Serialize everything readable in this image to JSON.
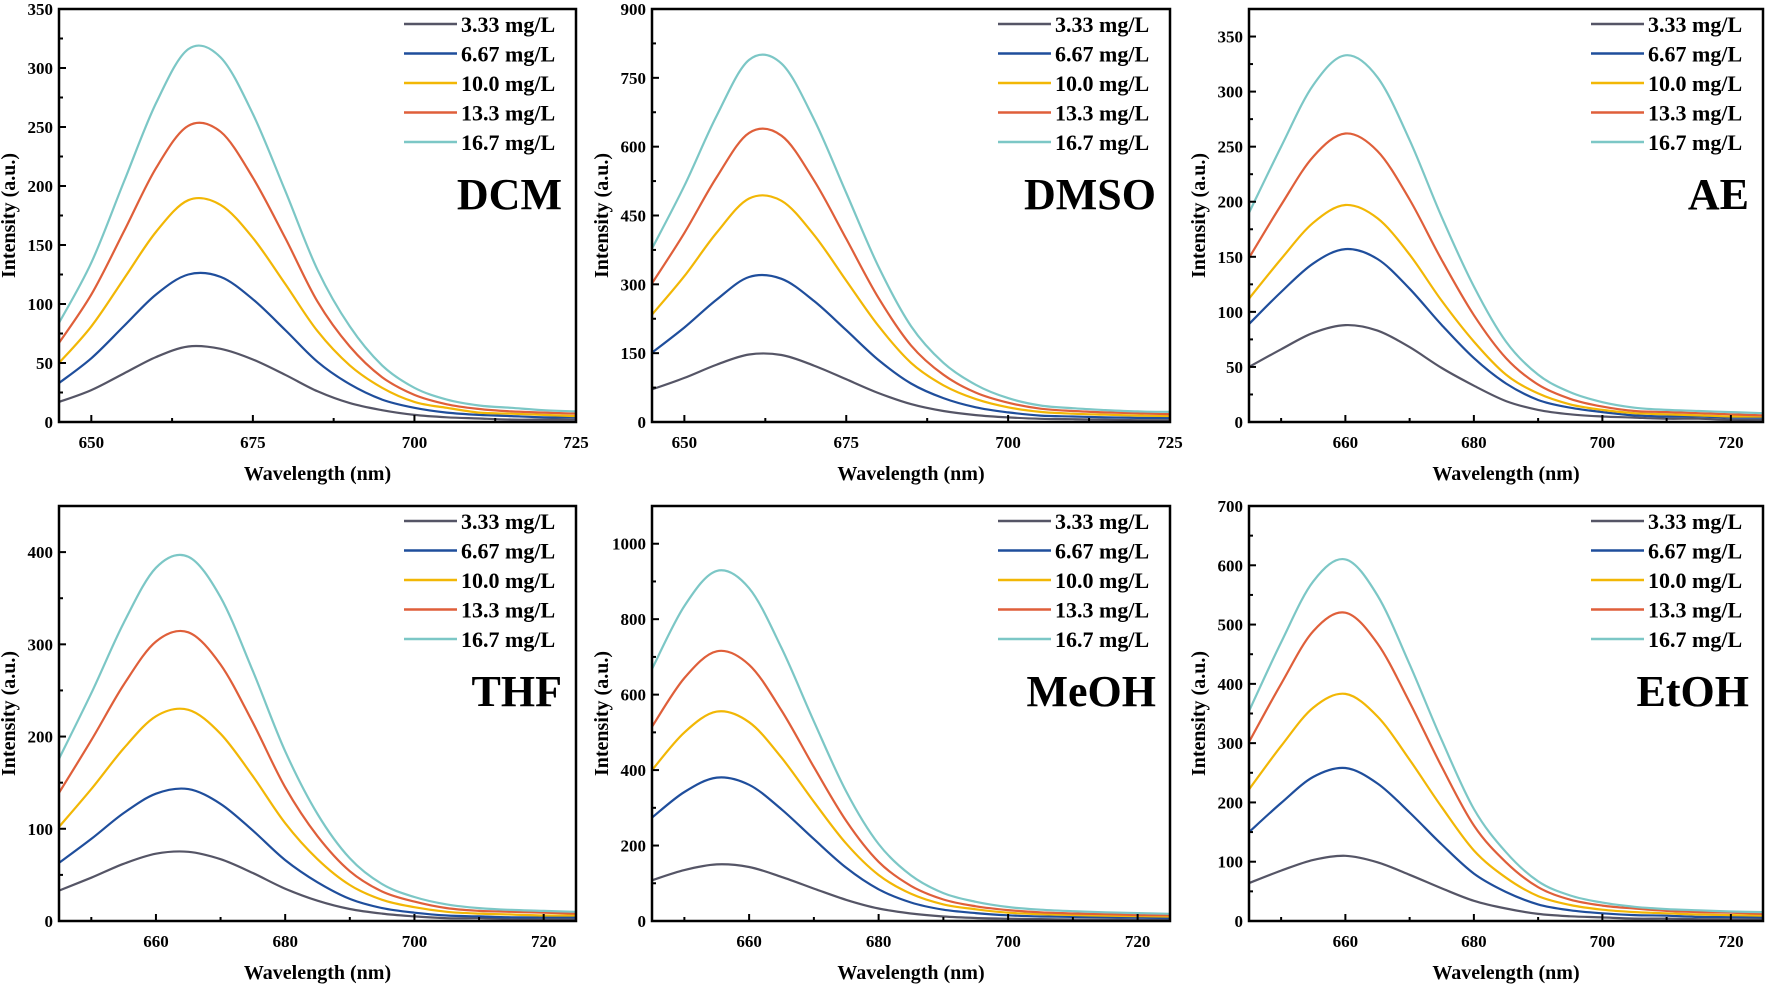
{
  "chart_data": [
    {
      "type": "line",
      "panel_label": "DCM",
      "xlabel": "Wavelength (nm)",
      "ylabel": "Intensity (a.u.)",
      "xlim": [
        645,
        725
      ],
      "ylim": [
        0,
        350
      ],
      "xticks": [
        650,
        675,
        700,
        725
      ],
      "yticks": [
        0,
        50,
        100,
        150,
        200,
        250,
        300,
        350
      ],
      "x": [
        645,
        650,
        655,
        660,
        665,
        670,
        675,
        680,
        685,
        690,
        695,
        700,
        705,
        710,
        715,
        720,
        725
      ],
      "series": [
        {
          "name": "3.33 mg/L",
          "color": "#555566",
          "values": [
            17,
            27,
            41,
            55,
            64,
            62,
            53,
            40,
            26,
            16,
            10,
            6,
            4,
            3,
            2,
            2,
            2
          ]
        },
        {
          "name": "6.67 mg/L",
          "color": "#1f4e9c",
          "values": [
            33,
            54,
            81,
            108,
            125,
            123,
            104,
            78,
            51,
            32,
            19,
            12,
            8,
            6,
            5,
            4,
            4
          ]
        },
        {
          "name": "10.0 mg/L",
          "color": "#f2b705",
          "values": [
            50,
            81,
            121,
            161,
            188,
            184,
            156,
            117,
            77,
            48,
            29,
            17,
            12,
            8,
            7,
            6,
            5
          ]
        },
        {
          "name": "13.3 mg/L",
          "color": "#df5f3a",
          "values": [
            67,
            108,
            161,
            215,
            251,
            246,
            207,
            156,
            102,
            64,
            38,
            23,
            15,
            11,
            9,
            8,
            7
          ]
        },
        {
          "name": "16.7 mg/L",
          "color": "#7cc7c6",
          "values": [
            84,
            135,
            203,
            270,
            316,
            309,
            261,
            196,
            129,
            81,
            48,
            29,
            19,
            14,
            12,
            10,
            9
          ]
        }
      ]
    },
    {
      "type": "line",
      "panel_label": "DMSO",
      "xlabel": "Wavelength (nm)",
      "ylabel": "Intensity (a.u.)",
      "xlim": [
        645,
        725
      ],
      "ylim": [
        0,
        900
      ],
      "xticks": [
        650,
        675,
        700,
        725
      ],
      "yticks": [
        0,
        150,
        300,
        450,
        600,
        750,
        900
      ],
      "x": [
        645,
        650,
        655,
        660,
        665,
        670,
        675,
        680,
        685,
        690,
        695,
        700,
        705,
        710,
        715,
        720,
        725
      ],
      "series": [
        {
          "name": "3.33 mg/L",
          "color": "#555566",
          "values": [
            71,
            96,
            125,
            147,
            146,
            123,
            93,
            63,
            39,
            24,
            15,
            10,
            7,
            6,
            5,
            4,
            4
          ]
        },
        {
          "name": "6.67 mg/L",
          "color": "#1f4e9c",
          "values": [
            151,
            206,
            267,
            316,
            312,
            264,
            200,
            135,
            84,
            52,
            32,
            21,
            14,
            12,
            10,
            9,
            9
          ]
        },
        {
          "name": "10.0 mg/L",
          "color": "#f2b705",
          "values": [
            234,
            318,
            413,
            487,
            482,
            408,
            308,
            209,
            129,
            80,
            50,
            32,
            22,
            18,
            16,
            14,
            13
          ]
        },
        {
          "name": "13.3 mg/L",
          "color": "#df5f3a",
          "values": [
            302,
            412,
            534,
            630,
            624,
            527,
            399,
            270,
            167,
            103,
            64,
            42,
            29,
            24,
            21,
            19,
            17
          ]
        },
        {
          "name": "16.7 mg/L",
          "color": "#7cc7c6",
          "values": [
            378,
            515,
            668,
            789,
            781,
            660,
            499,
            338,
            209,
            129,
            81,
            52,
            36,
            30,
            26,
            23,
            22
          ]
        }
      ]
    },
    {
      "type": "line",
      "panel_label": "AE",
      "xlabel": "Wavelength (nm)",
      "ylabel": "Intensity (a.u.)",
      "xlim": [
        645,
        725
      ],
      "ylim": [
        0,
        375
      ],
      "xticks": [
        660,
        680,
        700,
        720
      ],
      "yticks": [
        0,
        50,
        100,
        150,
        200,
        250,
        300,
        350
      ],
      "x": [
        645,
        650,
        655,
        660,
        665,
        670,
        675,
        680,
        685,
        690,
        695,
        700,
        705,
        710,
        715,
        720,
        725
      ],
      "series": [
        {
          "name": "3.33 mg/L",
          "color": "#555566",
          "values": [
            50,
            66,
            81,
            88,
            83,
            68,
            49,
            33,
            19,
            11,
            7,
            5,
            4,
            3,
            3,
            2,
            2
          ]
        },
        {
          "name": "6.67 mg/L",
          "color": "#1f4e9c",
          "values": [
            89,
            118,
            144,
            157,
            148,
            121,
            88,
            58,
            35,
            20,
            13,
            9,
            6,
            5,
            5,
            4,
            4
          ]
        },
        {
          "name": "10.0 mg/L",
          "color": "#f2b705",
          "values": [
            112,
            148,
            181,
            197,
            185,
            152,
            110,
            73,
            43,
            26,
            16,
            11,
            8,
            7,
            6,
            5,
            5
          ]
        },
        {
          "name": "13.3 mg/L",
          "color": "#df5f3a",
          "values": [
            149,
            197,
            241,
            262,
            246,
            202,
            147,
            97,
            58,
            34,
            21,
            14,
            10,
            9,
            8,
            7,
            6
          ]
        },
        {
          "name": "16.7 mg/L",
          "color": "#7cc7c6",
          "values": [
            190,
            250,
            306,
            333,
            313,
            256,
            186,
            123,
            73,
            43,
            27,
            18,
            13,
            11,
            10,
            9,
            8
          ]
        }
      ]
    },
    {
      "type": "line",
      "panel_label": "THF",
      "xlabel": "Wavelength (nm)",
      "ylabel": "Intensity (a.u.)",
      "xlim": [
        645,
        725
      ],
      "ylim": [
        0,
        450
      ],
      "xticks": [
        660,
        680,
        700,
        720
      ],
      "yticks": [
        0,
        100,
        200,
        300,
        400
      ],
      "x": [
        645,
        650,
        655,
        660,
        665,
        670,
        675,
        680,
        685,
        690,
        695,
        700,
        705,
        710,
        715,
        720,
        725
      ],
      "series": [
        {
          "name": "3.33 mg/L",
          "color": "#555566",
          "values": [
            33,
            47,
            62,
            73,
            75,
            67,
            52,
            35,
            22,
            13,
            8,
            5,
            3,
            3,
            2,
            2,
            2
          ]
        },
        {
          "name": "6.67 mg/L",
          "color": "#1f4e9c",
          "values": [
            63,
            89,
            117,
            138,
            143,
            127,
            98,
            66,
            42,
            24,
            14,
            9,
            6,
            5,
            4,
            4,
            4
          ]
        },
        {
          "name": "10.0 mg/L",
          "color": "#f2b705",
          "values": [
            102,
            143,
            187,
            222,
            229,
            203,
            157,
            106,
            67,
            39,
            23,
            15,
            10,
            8,
            7,
            6,
            6
          ]
        },
        {
          "name": "13.3 mg/L",
          "color": "#df5f3a",
          "values": [
            139,
            196,
            256,
            303,
            313,
            278,
            215,
            145,
            92,
            54,
            32,
            21,
            14,
            11,
            10,
            9,
            8
          ]
        },
        {
          "name": "16.7 mg/L",
          "color": "#7cc7c6",
          "values": [
            176,
            247,
            323,
            383,
            395,
            351,
            271,
            184,
            116,
            68,
            40,
            26,
            18,
            14,
            12,
            11,
            10
          ]
        }
      ]
    },
    {
      "type": "line",
      "panel_label": "MeOH",
      "xlabel": "Wavelength (nm)",
      "ylabel": "Intensity (a.u.)",
      "xlim": [
        645,
        725
      ],
      "ylim": [
        0,
        1100
      ],
      "xticks": [
        660,
        680,
        700,
        720
      ],
      "yticks": [
        0,
        200,
        400,
        600,
        800,
        1000
      ],
      "x": [
        645,
        650,
        655,
        660,
        665,
        670,
        675,
        680,
        685,
        690,
        695,
        700,
        705,
        710,
        715,
        720,
        725
      ],
      "series": [
        {
          "name": "3.33 mg/L",
          "color": "#555566",
          "values": [
            108,
            135,
            150,
            143,
            117,
            86,
            56,
            33,
            20,
            12,
            8,
            6,
            5,
            4,
            4,
            3,
            3
          ]
        },
        {
          "name": "6.67 mg/L",
          "color": "#1f4e9c",
          "values": [
            274,
            342,
            380,
            361,
            296,
            217,
            141,
            84,
            49,
            30,
            21,
            15,
            12,
            11,
            10,
            9,
            8
          ]
        },
        {
          "name": "10.0 mg/L",
          "color": "#f2b705",
          "values": [
            400,
            500,
            555,
            527,
            433,
            316,
            205,
            122,
            72,
            44,
            31,
            22,
            18,
            16,
            14,
            13,
            12
          ]
        },
        {
          "name": "13.3 mg/L",
          "color": "#df5f3a",
          "values": [
            515,
            644,
            715,
            679,
            558,
            408,
            265,
            157,
            93,
            57,
            39,
            29,
            23,
            20,
            18,
            16,
            15
          ]
        },
        {
          "name": "16.7 mg/L",
          "color": "#7cc7c6",
          "values": [
            668,
            835,
            928,
            882,
            724,
            529,
            343,
            204,
            121,
            74,
            51,
            37,
            30,
            26,
            23,
            21,
            19
          ]
        }
      ]
    },
    {
      "type": "line",
      "panel_label": "EtOH",
      "xlabel": "Wavelength (nm)",
      "ylabel": "Intensity (a.u.)",
      "xlim": [
        645,
        725
      ],
      "ylim": [
        0,
        700
      ],
      "xticks": [
        660,
        680,
        700,
        720
      ],
      "yticks": [
        0,
        100,
        200,
        300,
        400,
        500,
        600,
        700
      ],
      "x": [
        645,
        650,
        655,
        660,
        665,
        670,
        675,
        680,
        685,
        690,
        695,
        700,
        705,
        710,
        715,
        720,
        725
      ],
      "series": [
        {
          "name": "3.33 mg/L",
          "color": "#555566",
          "values": [
            64,
            85,
            103,
            110,
            99,
            78,
            55,
            34,
            21,
            12,
            8,
            6,
            4,
            4,
            3,
            3,
            3
          ]
        },
        {
          "name": "6.67 mg/L",
          "color": "#1f4e9c",
          "values": [
            150,
            199,
            243,
            258,
            232,
            183,
            129,
            80,
            49,
            28,
            18,
            13,
            10,
            9,
            7,
            7,
            6
          ]
        },
        {
          "name": "10.0 mg/L",
          "color": "#f2b705",
          "values": [
            222,
            295,
            360,
            383,
            345,
            272,
            192,
            119,
            73,
            42,
            27,
            19,
            15,
            13,
            11,
            10,
            9
          ]
        },
        {
          "name": "13.3 mg/L",
          "color": "#df5f3a",
          "values": [
            302,
            400,
            489,
            520,
            468,
            369,
            260,
            161,
            99,
            57,
            36,
            26,
            21,
            17,
            15,
            14,
            12
          ]
        },
        {
          "name": "16.7 mg/L",
          "color": "#7cc7c6",
          "values": [
            354,
            470,
            573,
            610,
            549,
            433,
            305,
            189,
            116,
            67,
            43,
            31,
            24,
            20,
            18,
            16,
            15
          ]
        }
      ]
    }
  ]
}
